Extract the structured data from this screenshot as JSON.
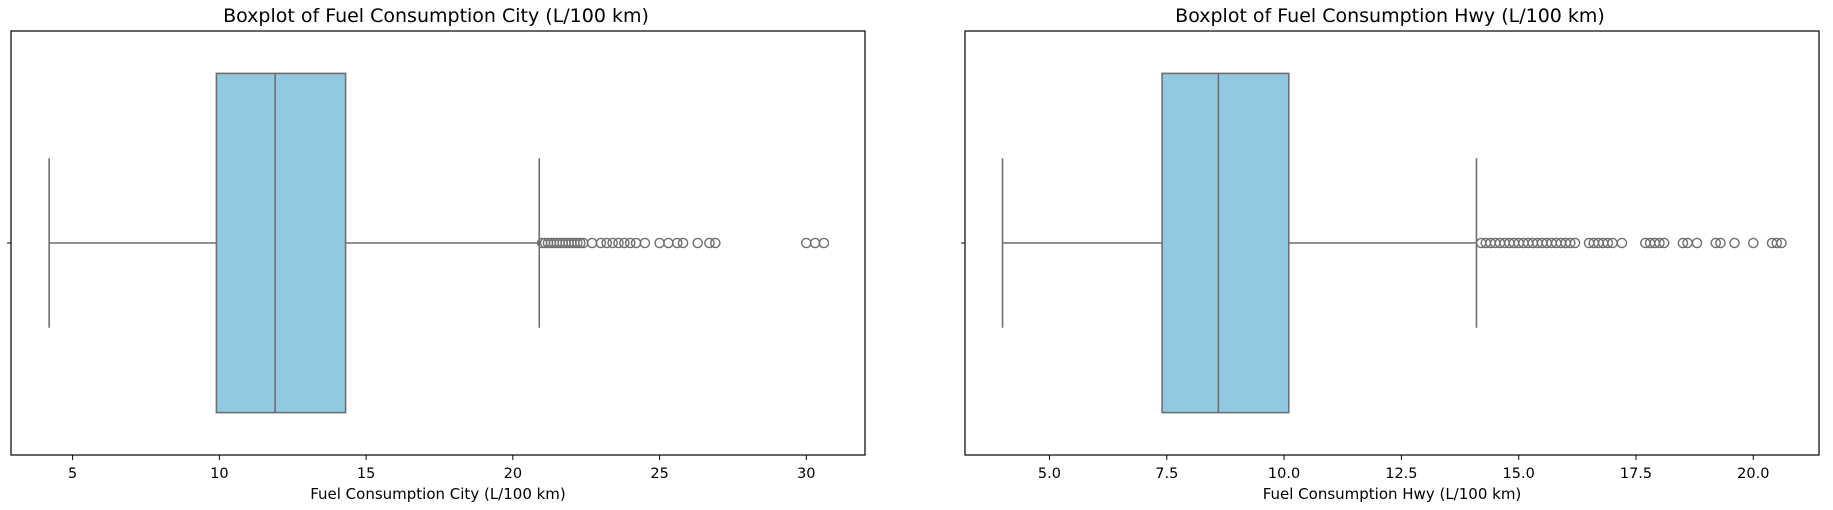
{
  "chart_data": [
    {
      "type": "boxplot",
      "title": "Boxplot of Fuel Consumption City (L/100 km)",
      "xlabel": "Fuel Consumption City (L/100 km)",
      "ylabel": "",
      "xlim": [
        2.9,
        32.0
      ],
      "xticks": [
        5,
        10,
        15,
        20,
        25,
        30
      ],
      "xtick_labels": [
        "5",
        "10",
        "15",
        "20",
        "25",
        "30"
      ],
      "box_color": "#92c9e2",
      "line_color": "#6f6f6f",
      "whisker_low": 4.2,
      "q1": 9.9,
      "median": 11.9,
      "q3": 14.3,
      "whisker_high": 20.9,
      "outliers": [
        21.0,
        21.1,
        21.2,
        21.3,
        21.4,
        21.5,
        21.6,
        21.7,
        21.8,
        21.9,
        22.0,
        22.1,
        22.2,
        22.3,
        22.4,
        22.7,
        23.0,
        23.2,
        23.4,
        23.6,
        23.8,
        24.0,
        24.2,
        24.5,
        25.0,
        25.3,
        25.6,
        25.8,
        26.3,
        26.7,
        26.9,
        30.0,
        30.3,
        30.6
      ]
    },
    {
      "type": "boxplot",
      "title": "Boxplot of Fuel Consumption Hwy (L/100 km)",
      "xlabel": "Fuel Consumption Hwy (L/100 km)",
      "ylabel": "",
      "xlim": [
        3.2,
        21.4
      ],
      "xticks": [
        5.0,
        7.5,
        10.0,
        12.5,
        15.0,
        17.5,
        20.0
      ],
      "xtick_labels": [
        "5.0",
        "7.5",
        "10.0",
        "12.5",
        "15.0",
        "17.5",
        "20.0"
      ],
      "box_color": "#92c9e2",
      "line_color": "#6f6f6f",
      "whisker_low": 4.0,
      "q1": 7.4,
      "median": 8.6,
      "q3": 10.1,
      "whisker_high": 14.1,
      "outliers": [
        14.2,
        14.3,
        14.4,
        14.5,
        14.6,
        14.7,
        14.8,
        14.9,
        15.0,
        15.1,
        15.2,
        15.3,
        15.4,
        15.5,
        15.6,
        15.7,
        15.8,
        15.9,
        16.0,
        16.1,
        16.2,
        16.5,
        16.6,
        16.7,
        16.8,
        16.9,
        17.0,
        17.2,
        17.7,
        17.8,
        17.9,
        18.0,
        18.1,
        18.5,
        18.6,
        18.8,
        19.2,
        19.3,
        19.6,
        20.0,
        20.4,
        20.5,
        20.6
      ]
    }
  ]
}
